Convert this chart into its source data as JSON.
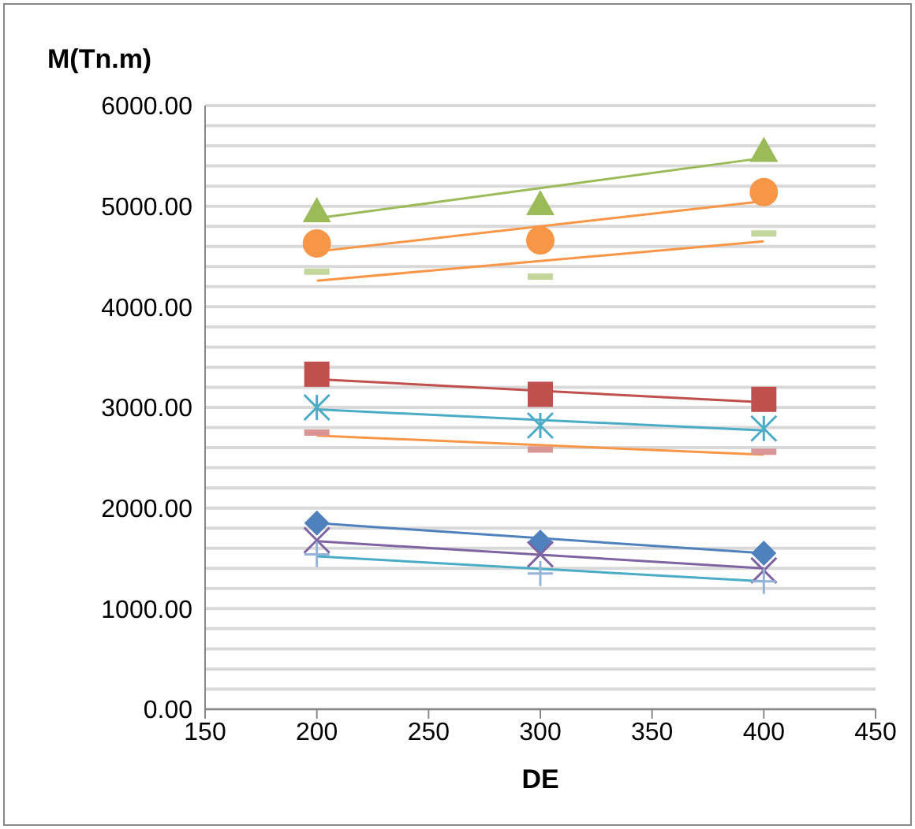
{
  "chart_data": {
    "type": "scatter",
    "ylabel": "M(Tn.m)",
    "xlabel": "DE",
    "xlim": [
      150,
      450
    ],
    "xticks": [
      150,
      200,
      250,
      300,
      350,
      400,
      450
    ],
    "ylim": [
      0,
      6000
    ],
    "yticks": [
      {
        "value": 0,
        "label": "0.00"
      },
      {
        "value": 200,
        "label": null
      },
      {
        "value": 400,
        "label": null
      },
      {
        "value": 600,
        "label": null
      },
      {
        "value": 800,
        "label": null
      },
      {
        "value": 1000,
        "label": "1000.00"
      },
      {
        "value": 1200,
        "label": null
      },
      {
        "value": 1400,
        "label": null
      },
      {
        "value": 1600,
        "label": null
      },
      {
        "value": 1800,
        "label": null
      },
      {
        "value": 2000,
        "label": "2000.00"
      },
      {
        "value": 2200,
        "label": null
      },
      {
        "value": 2400,
        "label": null
      },
      {
        "value": 2600,
        "label": null
      },
      {
        "value": 2800,
        "label": null
      },
      {
        "value": 3000,
        "label": "3000.00"
      },
      {
        "value": 3200,
        "label": null
      },
      {
        "value": 3400,
        "label": null
      },
      {
        "value": 3600,
        "label": null
      },
      {
        "value": 3800,
        "label": null
      },
      {
        "value": 4000,
        "label": "4000.00"
      },
      {
        "value": 4200,
        "label": null
      },
      {
        "value": 4400,
        "label": null
      },
      {
        "value": 4600,
        "label": null
      },
      {
        "value": 4800,
        "label": null
      },
      {
        "value": 5000,
        "label": "5000.00"
      },
      {
        "value": 5200,
        "label": null
      },
      {
        "value": 5400,
        "label": null
      },
      {
        "value": 5600,
        "label": null
      },
      {
        "value": 5800,
        "label": null
      },
      {
        "value": 6000,
        "label": "6000.00"
      }
    ],
    "grid": "y",
    "series": [
      {
        "marker": "diamond",
        "color": "#4f81bd",
        "x": [
          200,
          300,
          400
        ],
        "values": [
          1850,
          1660,
          1550
        ]
      },
      {
        "marker": "square",
        "color": "#c0504d",
        "x": [
          200,
          300,
          400
        ],
        "values": [
          3330,
          3130,
          3080
        ]
      },
      {
        "marker": "triangle",
        "color": "#9bbb59",
        "x": [
          200,
          300,
          400
        ],
        "values": [
          4950,
          5020,
          5550
        ]
      },
      {
        "marker": "x",
        "color": "#8064a2",
        "x": [
          200,
          300,
          400
        ],
        "values": [
          1680,
          1540,
          1380
        ]
      },
      {
        "marker": "cross",
        "color": "#4bacc6",
        "x": [
          200,
          300,
          400
        ],
        "values": [
          3000,
          2820,
          2790
        ]
      },
      {
        "marker": "circle",
        "color": "#f79646",
        "x": [
          200,
          300,
          400
        ],
        "values": [
          4630,
          4660,
          5140
        ]
      },
      {
        "marker": "plus",
        "color": "#95b3d7",
        "x": [
          200,
          300,
          400
        ],
        "values": [
          1540,
          1350,
          1270
        ]
      },
      {
        "color": "#d99694",
        "x": [
          200,
          300,
          400
        ],
        "values": [
          2750,
          2580,
          2560
        ]
      },
      {
        "color": "#c3d69b",
        "x": [
          200,
          300,
          400
        ],
        "values": [
          4350,
          4300,
          4730
        ]
      },
      {
        "type": "line",
        "marker": "none",
        "color": "#4f81bd",
        "x": [
          200,
          400
        ],
        "values": [
          1850,
          1550
        ]
      },
      {
        "type": "line",
        "marker": "none",
        "color": "#c0504d",
        "x": [
          200,
          400
        ],
        "values": [
          3280,
          3050
        ]
      },
      {
        "type": "line",
        "marker": "none",
        "color": "#9bbb59",
        "x": [
          200,
          400
        ],
        "values": [
          4880,
          5480
        ]
      },
      {
        "type": "line",
        "marker": "none",
        "color": "#8064a2",
        "x": [
          200,
          400
        ],
        "values": [
          1670,
          1400
        ]
      },
      {
        "type": "line",
        "marker": "none",
        "color": "#4bacc6",
        "x": [
          200,
          400
        ],
        "values": [
          2980,
          2770
        ]
      },
      {
        "type": "line",
        "marker": "none",
        "color": "#f79646",
        "x": [
          200,
          400
        ],
        "values": [
          4550,
          5050
        ]
      },
      {
        "type": "line",
        "marker": "none",
        "color": "#4bacc6",
        "x": [
          200,
          400
        ],
        "values": [
          1520,
          1270
        ]
      },
      {
        "type": "line",
        "marker": "none",
        "color": "#f79646",
        "x": [
          200,
          400
        ],
        "values": [
          2720,
          2530
        ]
      },
      {
        "type": "line",
        "marker": "none",
        "color": "#f79646",
        "x": [
          200,
          400
        ],
        "values": [
          4260,
          4650
        ]
      }
    ]
  }
}
